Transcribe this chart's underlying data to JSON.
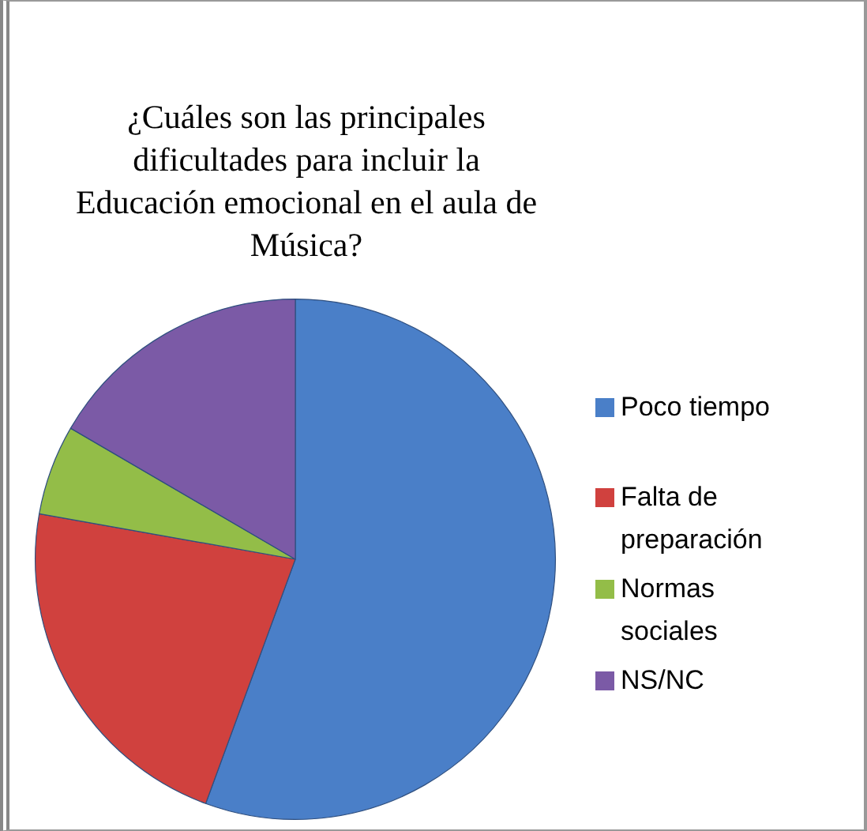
{
  "chart_data": {
    "type": "pie",
    "title": "¿Cuáles son las principales\ndificultades para incluir la\nEducación emocional en el aula de\nMúsica?",
    "categories": [
      "Poco tiempo",
      "Falta de preparación",
      "Normas sociales",
      "NS/NC"
    ],
    "values": [
      55.6,
      22.2,
      5.6,
      16.6
    ],
    "colors": [
      "#4a7fc8",
      "#d0413e",
      "#93bd48",
      "#7b5aa6"
    ],
    "legend": "right"
  }
}
